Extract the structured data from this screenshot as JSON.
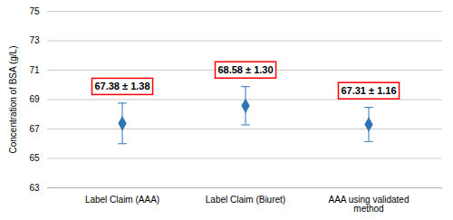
{
  "chart_data": {
    "type": "errorbar",
    "categories": [
      "Label Claim (AAA)",
      "Label Claim (Biuret)",
      "AAA using validated\nmethod"
    ],
    "values": [
      67.38,
      68.58,
      67.31
    ],
    "errors": [
      1.38,
      1.3,
      1.16
    ],
    "value_labels": [
      "67.38 ± 1.38",
      "68.58 ± 1.30",
      "67.31 ± 1.16"
    ],
    "data_labels": true,
    "ylabel": "Concentration of BSA (g/L)",
    "ylim": [
      63,
      75
    ],
    "yticks": [
      63,
      65,
      67,
      69,
      71,
      73,
      75
    ],
    "grid": true,
    "color": "#2E75B6",
    "marker": "diamond"
  }
}
